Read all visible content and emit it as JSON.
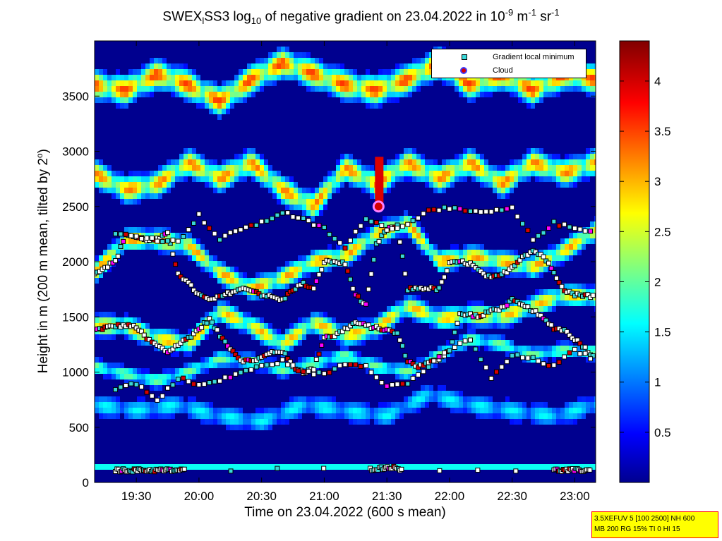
{
  "title_parts": {
    "a": "SWEX",
    "b": "l",
    "c": "SS3 log",
    "d": "10",
    "e": " of negative gradient on 23.04.2022 in 10",
    "f": "-9",
    "g": " m",
    "h": "-1",
    "i": " sr",
    "j": "-1"
  },
  "ylabel_parts": {
    "a": "Height in m (200 m mean, tilted by 2",
    "b": "o",
    "c": ")"
  },
  "xlabel": "Time on 23.04.2022 (600 s mean)",
  "legend": {
    "min_label": "Gradient local minimum",
    "cloud_label": "Cloud"
  },
  "info": {
    "line1": "3.5XEFUV 5 [100 2500] NH 600",
    "line2": "MB 200 RG 15% TI 0 HI 15"
  },
  "colors": {
    "background_low": "#00008f",
    "marker_min": "#39d8d8",
    "marker_cloud_fill": "#d60000",
    "marker_cloud_edge": "#3c3cff"
  },
  "chart_data": {
    "type": "heatmap",
    "colormap": "jet",
    "x_tick_labels": [
      "19:30",
      "20:00",
      "20:30",
      "21:00",
      "21:30",
      "22:00",
      "22:30",
      "23:00"
    ],
    "x_tick_minutes": [
      1170,
      1200,
      1230,
      1260,
      1290,
      1320,
      1350,
      1380
    ],
    "xlim_minutes": [
      1150,
      1390
    ],
    "y_tick_labels": [
      "0",
      "500",
      "1000",
      "1500",
      "2000",
      "2500",
      "3000",
      "3500"
    ],
    "y_ticks": [
      0,
      500,
      1000,
      1500,
      2000,
      2500,
      3000,
      3500
    ],
    "ylim": [
      0,
      4000
    ],
    "colorbar_tick_labels": [
      "0.5",
      "1",
      "1.5",
      "2",
      "2.5",
      "3",
      "3.5",
      "4"
    ],
    "colorbar_ticks": [
      0.5,
      1,
      1.5,
      2,
      2.5,
      3,
      3.5,
      4
    ],
    "colorbar_range": [
      0,
      4.4
    ],
    "layers": [
      {
        "t": [
          1150,
          1165,
          1180,
          1195,
          1210,
          1225,
          1240,
          1255,
          1270,
          1285,
          1300,
          1315,
          1330,
          1345,
          1360,
          1375,
          1390
        ],
        "h": [
          1420,
          1420,
          1300,
          1250,
          1550,
          1420,
          1250,
          1450,
          1330,
          1400,
          1600,
          1480,
          1520,
          1500,
          1600,
          1700,
          1680
        ],
        "v": 2.4,
        "w": 90
      },
      {
        "t": [
          1150,
          1165,
          1180,
          1195,
          1210,
          1225,
          1240,
          1255,
          1270,
          1285,
          1300,
          1315,
          1330,
          1345,
          1360,
          1375,
          1390
        ],
        "h": [
          1900,
          2200,
          2200,
          2150,
          1900,
          1750,
          1850,
          2000,
          2050,
          2250,
          2350,
          2000,
          2050,
          2000,
          1950,
          2100,
          2280
        ],
        "v": 2.5,
        "w": 90
      },
      {
        "t": [
          1150,
          1165,
          1180,
          1195,
          1210,
          1225,
          1240,
          1255,
          1270,
          1285,
          1300,
          1315,
          1330,
          1345,
          1360,
          1375,
          1390
        ],
        "h": [
          2800,
          2650,
          2700,
          2900,
          2750,
          2900,
          2650,
          2500,
          2850,
          2700,
          2900,
          2750,
          2900,
          2700,
          2900,
          2800,
          2900
        ],
        "v": 2.6,
        "w": 110
      },
      {
        "t": [
          1150,
          1165,
          1180,
          1195,
          1210,
          1225,
          1240,
          1255,
          1270,
          1285,
          1300,
          1315,
          1330,
          1345,
          1360,
          1375,
          1390
        ],
        "h": [
          3600,
          3550,
          3700,
          3600,
          3450,
          3650,
          3800,
          3700,
          3600,
          3550,
          3650,
          3800,
          3600,
          3700,
          3550,
          3700,
          3650
        ],
        "v": 2.8,
        "w": 120
      },
      {
        "t": [
          1150,
          1165,
          1180,
          1195,
          1210,
          1225,
          1240,
          1255,
          1270,
          1285,
          1300,
          1315,
          1330,
          1345,
          1360,
          1375,
          1390
        ],
        "h": [
          1050,
          980,
          920,
          1000,
          1120,
          1100,
          1020,
          1080,
          1150,
          1050,
          1000,
          1150,
          1300,
          1250,
          1150,
          1200,
          1180
        ],
        "v": 1.7,
        "w": 70
      },
      {
        "t": [
          1150,
          1170,
          1190,
          1210,
          1230,
          1250,
          1270,
          1290,
          1310,
          1330,
          1350,
          1370,
          1390
        ],
        "h": [
          700,
          650,
          700,
          600,
          550,
          700,
          650,
          600,
          800,
          700,
          650,
          600,
          700
        ],
        "v": 1.3,
        "w": 100
      }
    ],
    "cloud_segments": [
      {
        "t": 1286,
        "h0": 2480,
        "h1": 2950,
        "v": 4.0
      }
    ],
    "gradient_minimum_series": [
      {
        "t": [
          1150,
          1155,
          1160,
          1165,
          1170,
          1175,
          1180,
          1185,
          1190,
          1195,
          1200,
          1205,
          1210,
          1215,
          1220,
          1225,
          1230,
          1235,
          1240,
          1245,
          1250,
          1255,
          1260,
          1265,
          1270,
          1275,
          1280,
          1285,
          1290,
          1295,
          1300,
          1305,
          1310,
          1315,
          1320,
          1325,
          1330,
          1335,
          1340,
          1345,
          1350,
          1355,
          1360,
          1365,
          1370,
          1375,
          1380,
          1385,
          1390
        ],
        "h": [
          1380,
          1400,
          1420,
          1420,
          1410,
          1300,
          1240,
          1180,
          1250,
          1310,
          1390,
          1480,
          1330,
          1220,
          1110,
          1100,
          1130,
          1180,
          1190,
          1050,
          1000,
          1030,
          1320,
          1330,
          1390,
          1450,
          1420,
          1400,
          1380,
          1350,
          1100,
          1050,
          1080,
          1120,
          1200,
          1520,
          1520,
          1500,
          1560,
          1580,
          1650,
          1600,
          1560,
          1480,
          1400,
          1380,
          1300,
          1220,
          1110
        ]
      },
      {
        "t": [
          1150,
          1155,
          1160,
          1165,
          1170,
          1175,
          1180,
          1185,
          1190,
          1195,
          1200,
          1205,
          1210,
          1215,
          1220,
          1225,
          1230,
          1235,
          1240,
          1245,
          1250,
          1255,
          1260,
          1265,
          1270,
          1275,
          1280,
          1285,
          1290,
          1295,
          1300,
          1305,
          1310,
          1315,
          1320,
          1325,
          1330,
          1335,
          1340,
          1345,
          1350,
          1355,
          1360,
          1365,
          1370,
          1375,
          1380,
          1385,
          1390
        ],
        "h": [
          1900,
          1950,
          2000,
          2250,
          2220,
          2200,
          2200,
          2250,
          1900,
          1800,
          1700,
          1650,
          1680,
          1720,
          1750,
          1750,
          1700,
          1680,
          1650,
          1750,
          1800,
          1750,
          2000,
          2000,
          1980,
          1700,
          1600,
          2150,
          2300,
          2320,
          1750,
          1760,
          1760,
          1750,
          1980,
          2000,
          1980,
          1900,
          1850,
          1880,
          1950,
          2050,
          2100,
          2050,
          1900,
          1750,
          1700,
          1700,
          1680
        ]
      },
      {
        "t": [
          1160,
          1170,
          1180,
          1190,
          1200,
          1210,
          1220,
          1230,
          1240,
          1250,
          1260,
          1270,
          1280,
          1290,
          1300,
          1310,
          1320,
          1330,
          1340,
          1350,
          1360,
          1370,
          1380,
          1390
        ],
        "h": [
          2250,
          2230,
          2200,
          2180,
          2420,
          2200,
          2300,
          2350,
          2450,
          2380,
          2300,
          2120,
          2400,
          2300,
          2330,
          2480,
          2480,
          2450,
          2450,
          2480,
          2200,
          2350,
          2300,
          2280
        ]
      },
      {
        "t": [
          1160,
          1170,
          1180,
          1190,
          1200,
          1210,
          1220,
          1230,
          1240,
          1250,
          1260,
          1270,
          1280,
          1290,
          1300,
          1310,
          1320,
          1330,
          1340,
          1350,
          1360,
          1370,
          1380,
          1390
        ],
        "h": [
          850,
          900,
          740,
          950,
          880,
          920,
          1000,
          1050,
          1100,
          1000,
          980,
          1080,
          1060,
          870,
          900,
          1050,
          1200,
          1300,
          940,
          1150,
          1120,
          1050,
          1200,
          1110
        ]
      },
      {
        "t": [
          1160,
          1163,
          1166,
          1169,
          1172,
          1175,
          1178,
          1181,
          1184,
          1187,
          1190,
          1193,
          1282,
          1285,
          1288,
          1291,
          1294,
          1297,
          1370,
          1373,
          1376,
          1379,
          1382,
          1385,
          1388
        ],
        "h": [
          110,
          110,
          110,
          110,
          110,
          110,
          110,
          110,
          110,
          110,
          110,
          110,
          120,
          125,
          130,
          140,
          130,
          120,
          110,
          110,
          110,
          110,
          110,
          110,
          110
        ]
      }
    ],
    "cloud_points": [
      {
        "t": 1286,
        "h": 2500
      }
    ]
  }
}
